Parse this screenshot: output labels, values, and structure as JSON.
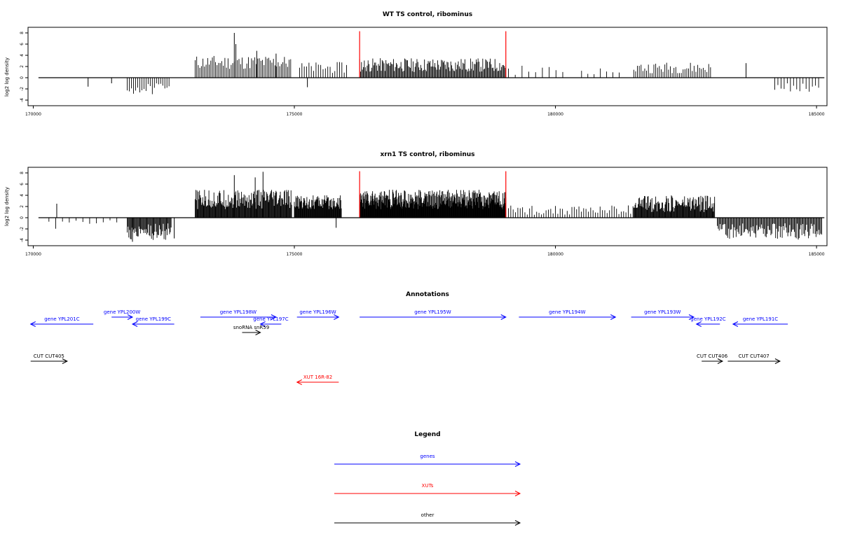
{
  "chart_data": [
    {
      "type": "bar",
      "title": "WT TS control, ribominus",
      "ylabel": "log2 log density",
      "xlim": [
        169900,
        185200
      ],
      "ylim": [
        -5,
        9
      ],
      "xticks": [
        "170000",
        "175000",
        "180000",
        "185000"
      ],
      "yticks": [
        "-4",
        "-2",
        "0",
        "2",
        "4",
        "6",
        "8"
      ],
      "baseline_range": [
        170100,
        185150
      ],
      "markers": {
        "color": "#ff0000",
        "x": [
          176250,
          179050
        ],
        "value": 8.3
      },
      "segments": [
        {
          "range": [
            173100,
            174950
          ],
          "step": 30,
          "mag": [
            1.5,
            4.0
          ],
          "sign": 1
        },
        {
          "range": [
            176250,
            179050
          ],
          "step": 18,
          "mag": [
            1.0,
            3.5
          ],
          "sign": 1
        },
        {
          "range": [
            171800,
            172600
          ],
          "step": 40,
          "mag": [
            1.0,
            3.0
          ],
          "sign": -1
        },
        {
          "range": [
            175100,
            176000
          ],
          "step": 45,
          "mag": [
            0.8,
            2.8
          ],
          "sign": 1
        },
        {
          "range": [
            181500,
            183000
          ],
          "step": 35,
          "mag": [
            0.8,
            2.8
          ],
          "sign": 1
        },
        {
          "range": [
            184200,
            185050
          ],
          "step": 60,
          "mag": [
            1.0,
            2.6
          ],
          "sign": -1
        },
        {
          "range": [
            179100,
            180200
          ],
          "step": 130,
          "mag": [
            0.5,
            2.2
          ],
          "sign": 1
        },
        {
          "range": [
            180500,
            181300
          ],
          "step": 120,
          "mag": [
            0.6,
            1.8
          ],
          "sign": 1
        }
      ],
      "spikes": [
        {
          "x": 173850,
          "value": 8.0
        },
        {
          "x": 173880,
          "value": 6.0
        },
        {
          "x": 174280,
          "value": 4.8
        },
        {
          "x": 174650,
          "value": 4.3
        },
        {
          "x": 171050,
          "value": -1.6
        },
        {
          "x": 171500,
          "value": -1.0
        },
        {
          "x": 175250,
          "value": -1.7
        },
        {
          "x": 183650,
          "value": 2.6
        }
      ]
    },
    {
      "type": "bar",
      "title": "xrn1 TS control, ribominus",
      "ylabel": "log2 log density",
      "xlim": [
        169900,
        185200
      ],
      "ylim": [
        -5,
        9
      ],
      "xticks": [
        "170000",
        "175000",
        "180000",
        "185000"
      ],
      "yticks": [
        "-4",
        "-2",
        "0",
        "2",
        "4",
        "6",
        "8"
      ],
      "baseline_range": [
        170100,
        185150
      ],
      "markers": {
        "color": "#ff0000",
        "x": [
          176250,
          179050
        ],
        "value": 8.3
      },
      "segments": [
        {
          "range": [
            173100,
            174950
          ],
          "step": 12,
          "mag": [
            1.5,
            5.0
          ],
          "sign": 1
        },
        {
          "range": [
            175000,
            175900
          ],
          "step": 10,
          "mag": [
            1.5,
            4.0
          ],
          "sign": 1
        },
        {
          "range": [
            176250,
            179050
          ],
          "step": 8,
          "mag": [
            1.5,
            5.0
          ],
          "sign": 1
        },
        {
          "range": [
            171800,
            172650
          ],
          "step": 15,
          "mag": [
            1.0,
            4.0
          ],
          "sign": -1
        },
        {
          "range": [
            179100,
            181500
          ],
          "step": 45,
          "mag": [
            0.5,
            2.2
          ],
          "sign": 1
        },
        {
          "range": [
            181500,
            183050
          ],
          "step": 12,
          "mag": [
            1.0,
            4.0
          ],
          "sign": 1
        },
        {
          "range": [
            183100,
            185100
          ],
          "step": 18,
          "mag": [
            1.0,
            3.8
          ],
          "sign": -1
        },
        {
          "range": [
            170300,
            171600
          ],
          "step": 130,
          "mag": [
            0.4,
            2.0
          ],
          "sign": -1
        }
      ],
      "spikes": [
        {
          "x": 173850,
          "value": 7.6
        },
        {
          "x": 174250,
          "value": 7.2
        },
        {
          "x": 174400,
          "value": 8.2
        },
        {
          "x": 170450,
          "value": 2.5
        },
        {
          "x": 171900,
          "value": -4.3
        },
        {
          "x": 172700,
          "value": -3.7
        },
        {
          "x": 175800,
          "value": -1.8
        },
        {
          "x": 184650,
          "value": -3.9
        }
      ]
    }
  ],
  "annotations": {
    "title": "Annotations",
    "xlim": [
      169900,
      185200
    ],
    "features": [
      {
        "label": "gene YPL201C",
        "class": "gene",
        "start": 171150,
        "end": 169950,
        "row": 2
      },
      {
        "label": "gene YPL200W",
        "class": "gene",
        "start": 171500,
        "end": 171900,
        "row": 1
      },
      {
        "label": "gene YPL199C",
        "class": "gene",
        "start": 172700,
        "end": 171900,
        "row": 2
      },
      {
        "label": "gene YPL198W",
        "class": "gene",
        "start": 173200,
        "end": 174650,
        "row": 1
      },
      {
        "label": "gene YPL197C",
        "class": "gene",
        "start": 174750,
        "end": 174350,
        "row": 2
      },
      {
        "label": "snoRNA snR59",
        "class": "other",
        "start": 174000,
        "end": 174350,
        "row": 3
      },
      {
        "label": "gene YPL196W",
        "class": "gene",
        "start": 175050,
        "end": 175850,
        "row": 1
      },
      {
        "label": "gene YPL195W",
        "class": "gene",
        "start": 176250,
        "end": 179050,
        "row": 1
      },
      {
        "label": "gene YPL194W",
        "class": "gene",
        "start": 179300,
        "end": 181150,
        "row": 1
      },
      {
        "label": "gene YPL193W",
        "class": "gene",
        "start": 181450,
        "end": 182650,
        "row": 1
      },
      {
        "label": "gene YPL192C",
        "class": "gene",
        "start": 183150,
        "end": 182700,
        "row": 2
      },
      {
        "label": "gene YPL191C",
        "class": "gene",
        "start": 184450,
        "end": 183400,
        "row": 2
      },
      {
        "label": "CUT CUT405",
        "class": "other",
        "start": 169950,
        "end": 170650,
        "row": 4
      },
      {
        "label": "CUT CUT406",
        "class": "other",
        "start": 182800,
        "end": 183200,
        "row": 4
      },
      {
        "label": "CUT CUT407",
        "class": "other",
        "start": 183300,
        "end": 184300,
        "row": 4
      },
      {
        "label": "XUT 16R-82",
        "class": "xut",
        "start": 175850,
        "end": 175050,
        "row": 5
      }
    ]
  },
  "legend": {
    "title": "Legend",
    "items": [
      {
        "label": "genes",
        "color": "#0000ff"
      },
      {
        "label": "XUTs",
        "color": "#ff0000"
      },
      {
        "label": "other",
        "color": "#000000"
      }
    ]
  },
  "colors": {
    "gene": "#0000ff",
    "xut": "#ff0000",
    "other": "#000000",
    "axis": "#000000"
  }
}
